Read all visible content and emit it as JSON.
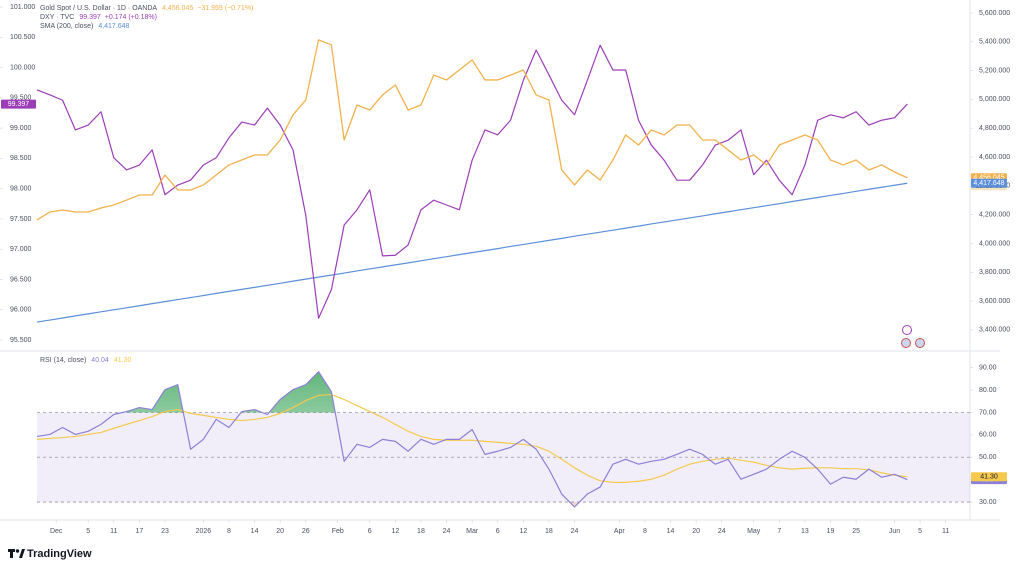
{
  "chart_data": [
    {
      "type": "line",
      "x": [
        0,
        2,
        4,
        6,
        8,
        10,
        12,
        14,
        16,
        18,
        20,
        22,
        24,
        26,
        28,
        30,
        32,
        34,
        36,
        38,
        40,
        42,
        44,
        46,
        48,
        50,
        52,
        54,
        56,
        58,
        60,
        62,
        64,
        66,
        68,
        70,
        72,
        74,
        76,
        78,
        80,
        82,
        84,
        86,
        88,
        90,
        92,
        94,
        96,
        98,
        100,
        102,
        104,
        106,
        108,
        110,
        112,
        114,
        116,
        118,
        120,
        122,
        124,
        126,
        128,
        130,
        132,
        134,
        136
      ],
      "xlim": [
        0,
        145.8
      ],
      "ylim": [
        95.335,
        101.116
      ],
      "yticks": [
        {
          "value": 95.5,
          "label": "95.500"
        },
        {
          "value": 96,
          "label": "96.000"
        },
        {
          "value": 96.5,
          "label": "96.500"
        },
        {
          "value": 97,
          "label": "97.000"
        },
        {
          "value": 97.5,
          "label": "97.500"
        },
        {
          "value": 98,
          "label": "98.000"
        },
        {
          "value": 98.5,
          "label": "98.500"
        },
        {
          "value": 99,
          "label": "99.000"
        },
        {
          "value": 99.5,
          "label": "99.500"
        },
        {
          "value": 100,
          "label": "100.000"
        },
        {
          "value": 100.5,
          "label": "100.500"
        },
        {
          "value": 101,
          "label": "101.000"
        }
      ],
      "y2lim": [
        3260,
        5690
      ],
      "y2ticks": [
        {
          "value": 3400,
          "label": "3,400.000"
        },
        {
          "value": 3600,
          "label": "3,600.000"
        },
        {
          "value": 3800,
          "label": "3,800.000"
        },
        {
          "value": 4000,
          "label": "4,000.000"
        },
        {
          "value": 4200,
          "label": "4,200.000"
        },
        {
          "value": 4400,
          "label": "4,400.000"
        },
        {
          "value": 4600,
          "label": "4,600.000"
        },
        {
          "value": 4800,
          "label": "4,800.000"
        },
        {
          "value": 5000,
          "label": "5,000.000"
        },
        {
          "value": 5200,
          "label": "5,200.000"
        },
        {
          "value": 5400,
          "label": "5,400.000"
        },
        {
          "value": 5600,
          "label": "5,600.000"
        }
      ],
      "series": [
        {
          "name": "Gold Spot / U.S. Dollar · 1D · OANDA",
          "color": "#f2b14c",
          "axis": "y2",
          "last_label": "4,456.045",
          "change": "−31.959 (−0.71%)",
          "countdown": "12:15:58",
          "values": [
            4163,
            4218,
            4232,
            4218,
            4218,
            4246,
            4267,
            4301,
            4336,
            4336,
            4475,
            4371,
            4371,
            4406,
            4475,
            4545,
            4579,
            4614,
            4614,
            4718,
            4892,
            4996,
            5413,
            5378,
            4718,
            4961,
            4926,
            5031,
            5100,
            4926,
            4961,
            5169,
            5135,
            5204,
            5274,
            5135,
            5135,
            5169,
            5204,
            5031,
            4996,
            4510,
            4406,
            4510,
            4440,
            4579,
            4753,
            4683,
            4788,
            4753,
            4822,
            4822,
            4718,
            4718,
            4649,
            4579,
            4614,
            4545,
            4683,
            4718,
            4753,
            4718,
            4579,
            4545,
            4579,
            4510,
            4545,
            4496,
            4456.045
          ]
        },
        {
          "name": "DXY · TVC",
          "color": "#9c3db8",
          "last_label": "99.397",
          "change": "+0.174 (+0.18%)",
          "values": [
            99.63,
            99.55,
            99.46,
            98.97,
            99.05,
            99.27,
            98.51,
            98.31,
            98.39,
            98.64,
            97.9,
            98.06,
            98.14,
            98.39,
            98.51,
            98.84,
            99.1,
            99.05,
            99.33,
            99.05,
            98.64,
            97.56,
            95.86,
            96.33,
            97.4,
            97.65,
            97.98,
            96.89,
            96.9,
            97.07,
            97.65,
            97.81,
            97.73,
            97.65,
            98.47,
            98.97,
            98.89,
            99.13,
            99.79,
            100.29,
            99.88,
            99.46,
            99.22,
            99.79,
            100.37,
            99.96,
            99.96,
            99.13,
            98.72,
            98.47,
            98.14,
            98.14,
            98.39,
            98.72,
            98.8,
            98.97,
            98.23,
            98.47,
            98.14,
            97.9,
            98.39,
            99.13,
            99.22,
            99.17,
            99.27,
            99.05,
            99.13,
            99.17,
            99.397
          ]
        },
        {
          "name": "SMA (200, close)",
          "color": "#5b8fd9",
          "axis": "y2",
          "last_label": "4,417.648",
          "values": [
            3454,
            3468,
            3482,
            3497,
            3511,
            3525,
            3539,
            3553,
            3567,
            3582,
            3596,
            3610,
            3624,
            3638,
            3653,
            3667,
            3681,
            3695,
            3709,
            3723,
            3738,
            3752,
            3766,
            3780,
            3794,
            3809,
            3823,
            3837,
            3851,
            3865,
            3879,
            3894,
            3908,
            3922,
            3936,
            3950,
            3964,
            3979,
            3993,
            4007,
            4021,
            4035,
            4050,
            4064,
            4078,
            4092,
            4106,
            4120,
            4135,
            4149,
            4163,
            4177,
            4191,
            4206,
            4220,
            4234,
            4248,
            4262,
            4276,
            4291,
            4305,
            4319,
            4333,
            4347,
            4362,
            4376,
            4390,
            4404,
            4417.648
          ]
        }
      ]
    },
    {
      "type": "line",
      "title": "RSI (14, close)",
      "x": [
        0,
        2,
        4,
        6,
        8,
        10,
        12,
        14,
        16,
        18,
        20,
        22,
        24,
        26,
        28,
        30,
        32,
        34,
        36,
        38,
        40,
        42,
        44,
        46,
        48,
        50,
        52,
        54,
        56,
        58,
        60,
        62,
        64,
        66,
        68,
        70,
        72,
        74,
        76,
        78,
        80,
        82,
        84,
        86,
        88,
        90,
        92,
        94,
        96,
        98,
        100,
        102,
        104,
        106,
        108,
        110,
        112,
        114,
        116,
        118,
        120,
        122,
        124,
        126,
        128,
        130,
        132,
        134,
        136
      ],
      "xlim": [
        0,
        145.8
      ],
      "ylim": [
        22,
        97
      ],
      "yticks": [
        {
          "value": 30,
          "label": "30.00"
        },
        {
          "value": 40,
          "label": "40.00"
        },
        {
          "value": 50,
          "label": "50.00"
        },
        {
          "value": 60,
          "label": "60.00"
        },
        {
          "value": 70,
          "label": "70.00"
        },
        {
          "value": 80,
          "label": "80.00"
        },
        {
          "value": 90,
          "label": "90.00"
        }
      ],
      "levels": [
        70,
        50,
        30
      ],
      "xticks": [
        {
          "value": 3,
          "label": "Dec"
        },
        {
          "value": 8,
          "label": "5"
        },
        {
          "value": 12,
          "label": "11"
        },
        {
          "value": 16,
          "label": "17"
        },
        {
          "value": 20,
          "label": "23"
        },
        {
          "value": 26,
          "label": "2026"
        },
        {
          "value": 30,
          "label": "8"
        },
        {
          "value": 34,
          "label": "14"
        },
        {
          "value": 38,
          "label": "20"
        },
        {
          "value": 42,
          "label": "26"
        },
        {
          "value": 47,
          "label": "Feb"
        },
        {
          "value": 52,
          "label": "6"
        },
        {
          "value": 56,
          "label": "12"
        },
        {
          "value": 60,
          "label": "18"
        },
        {
          "value": 64,
          "label": "24"
        },
        {
          "value": 68,
          "label": "Mar"
        },
        {
          "value": 72,
          "label": "6"
        },
        {
          "value": 76,
          "label": "12"
        },
        {
          "value": 80,
          "label": "18"
        },
        {
          "value": 84,
          "label": "24"
        },
        {
          "value": 91,
          "label": "Apr"
        },
        {
          "value": 95,
          "label": "8"
        },
        {
          "value": 99,
          "label": "14"
        },
        {
          "value": 103,
          "label": "20"
        },
        {
          "value": 107,
          "label": "24"
        },
        {
          "value": 112,
          "label": "May"
        },
        {
          "value": 116,
          "label": "7"
        },
        {
          "value": 120,
          "label": "13"
        },
        {
          "value": 124,
          "label": "19"
        },
        {
          "value": 128,
          "label": "25"
        },
        {
          "value": 134,
          "label": "Jun"
        },
        {
          "value": 138,
          "label": "5"
        },
        {
          "value": 142,
          "label": "11"
        }
      ],
      "series": [
        {
          "color": "#8b80d6",
          "last_label": "40.04",
          "values": [
            59.3,
            60.2,
            63.3,
            60.2,
            61.6,
            64.7,
            69.1,
            70.4,
            72.2,
            71.3,
            80.2,
            82.4,
            53.6,
            58.0,
            66.9,
            63.3,
            70.4,
            71.3,
            69.1,
            75.8,
            80.2,
            82.4,
            88.2,
            79.3,
            48.2,
            55.8,
            54.4,
            58.0,
            57.1,
            52.7,
            58.0,
            55.8,
            58.0,
            58.0,
            62.4,
            51.3,
            52.7,
            54.4,
            58.0,
            53.6,
            44.7,
            33.6,
            27.8,
            33.6,
            36.7,
            46.9,
            49.1,
            46.9,
            48.2,
            49.1,
            51.3,
            53.6,
            51.3,
            46.9,
            49.1,
            40.2,
            42.4,
            44.7,
            49.1,
            52.7,
            50.0,
            44.7,
            38.0,
            41.1,
            40.2,
            44.7,
            41.1,
            42.4,
            40.04
          ]
        },
        {
          "color": "#f5c94e",
          "last_label": "41.30",
          "values": [
            58.0,
            58.4,
            58.8,
            59.3,
            60.2,
            61.1,
            62.9,
            64.7,
            66.4,
            68.2,
            70.4,
            71.3,
            69.6,
            68.7,
            67.8,
            66.9,
            66.4,
            66.9,
            67.8,
            69.6,
            72.2,
            75.3,
            77.6,
            78.0,
            75.8,
            73.1,
            70.4,
            67.8,
            64.7,
            61.6,
            59.3,
            58.0,
            57.6,
            57.6,
            57.6,
            57.1,
            56.7,
            56.2,
            55.8,
            54.9,
            52.7,
            49.1,
            45.3,
            42.0,
            39.5,
            38.8,
            38.8,
            39.3,
            40.2,
            42.0,
            44.7,
            46.9,
            48.2,
            49.1,
            49.6,
            48.7,
            47.8,
            46.4,
            45.3,
            44.7,
            45.1,
            45.3,
            45.3,
            44.9,
            44.9,
            44.4,
            43.1,
            42.0,
            41.3
          ]
        }
      ]
    }
  ],
  "footer": {
    "brand": "TradingView"
  }
}
